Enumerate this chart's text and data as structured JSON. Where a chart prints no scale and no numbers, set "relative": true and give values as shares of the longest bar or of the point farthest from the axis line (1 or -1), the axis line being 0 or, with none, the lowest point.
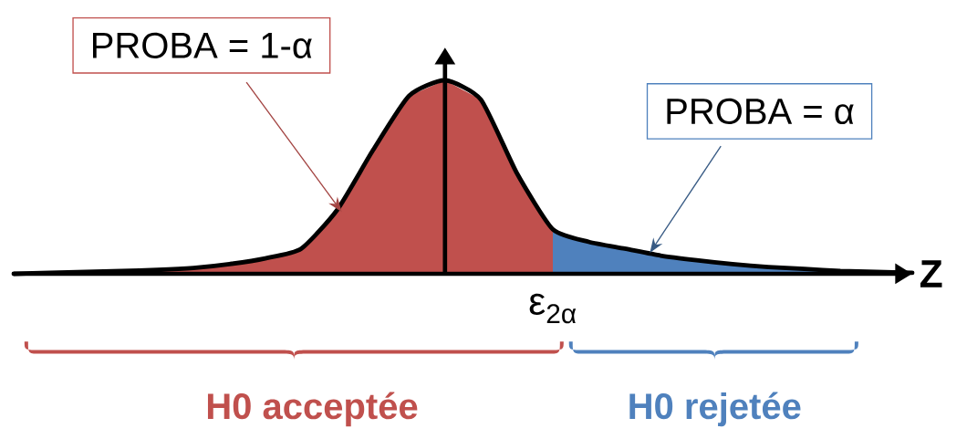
{
  "chart_data": {
    "type": "area",
    "relative": true,
    "xlabel": "Z",
    "categories": [
      null,
      null,
      null,
      null,
      null,
      null,
      null,
      null,
      null,
      null,
      null,
      null,
      null,
      null,
      null,
      null,
      null,
      null,
      null,
      null,
      null,
      null,
      null,
      null,
      null,
      null
    ],
    "series": [
      {
        "type": "area",
        "color": "#c0504d",
        "values": [
          0.0,
          0.005,
          0.01,
          0.015,
          0.02,
          0.03,
          0.05,
          0.08,
          0.13,
          0.33,
          0.64,
          0.92,
          1.0,
          0.9,
          0.52,
          0.23,
          null,
          null,
          null,
          null,
          null,
          null,
          null,
          null,
          null,
          null
        ]
      },
      {
        "type": "area",
        "color": "#4f81bd",
        "values": [
          null,
          null,
          null,
          null,
          null,
          null,
          null,
          null,
          null,
          null,
          null,
          null,
          null,
          null,
          null,
          0.23,
          0.165,
          0.13,
          0.094,
          0.07,
          0.05,
          0.035,
          0.025,
          0.015,
          0.01,
          0.005
        ]
      },
      {
        "type": "line",
        "color": "#000000",
        "values": [
          0.0,
          0.005,
          0.01,
          0.015,
          0.02,
          0.03,
          0.05,
          0.08,
          0.13,
          0.33,
          0.64,
          0.92,
          1.0,
          0.9,
          0.52,
          0.23,
          0.165,
          0.13,
          0.094,
          0.07,
          0.05,
          0.035,
          0.025,
          0.015,
          0.01,
          0.005
        ]
      }
    ],
    "annotations": [
      "PROBA = 1-α",
      "PROBA = α",
      "ε$_{2α}$",
      "H0 acceptée",
      "H0 rejetée"
    ]
  }
}
